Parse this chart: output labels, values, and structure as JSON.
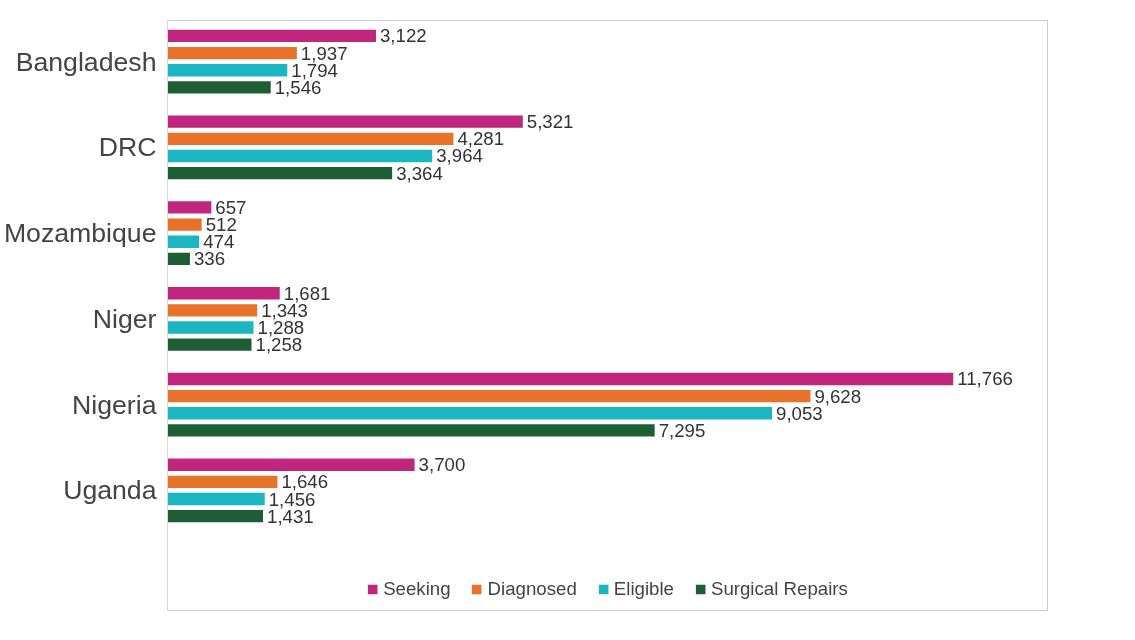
{
  "chart_data": {
    "type": "bar",
    "orientation": "horizontal",
    "categories": [
      "Bangladesh",
      "DRC",
      "Mozambique",
      "Niger",
      "Nigeria",
      "Uganda"
    ],
    "series": [
      {
        "name": "Seeking",
        "color": "#c0267e",
        "values": [
          3122,
          5321,
          657,
          1681,
          11766,
          3700
        ],
        "value_labels": [
          "3,122",
          "5,321",
          "657",
          "1,681",
          "11,766",
          "3,700"
        ]
      },
      {
        "name": "Diagnosed",
        "color": "#e8722a",
        "values": [
          1937,
          4281,
          512,
          1343,
          9628,
          1646
        ],
        "value_labels": [
          "1,937",
          "4,281",
          "512",
          "1,343",
          "9,628",
          "1,646"
        ]
      },
      {
        "name": "Eligible",
        "color": "#1cb5c2",
        "values": [
          1794,
          3964,
          474,
          1288,
          9053,
          1456
        ],
        "value_labels": [
          "1,794",
          "3,964",
          "474",
          "1,288",
          "9,053",
          "1,456"
        ]
      },
      {
        "name": "Surgical Repairs",
        "color": "#1e5e35",
        "values": [
          1546,
          3364,
          336,
          1258,
          7295,
          1431
        ],
        "value_labels": [
          "1,546",
          "3,364",
          "336",
          "1,258",
          "7,295",
          "1,431"
        ]
      }
    ],
    "legend": "bottom",
    "grid": false
  }
}
